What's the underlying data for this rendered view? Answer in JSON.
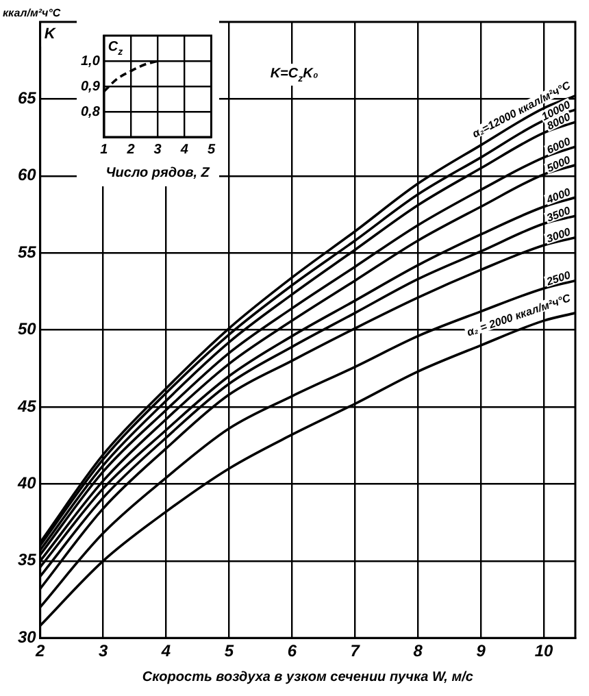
{
  "chart_data": [
    {
      "type": "line",
      "xlabel": "Скорость воздуха в узком сечении пучка W, м/с",
      "ylabel": "ккал/м²ч°С",
      "annotations": [
        "K=C$_{z}$K₀",
        "K"
      ],
      "x": [
        2,
        3,
        4,
        5,
        6,
        7,
        8,
        9,
        10,
        10.5
      ],
      "xlim": [
        2,
        10.5
      ],
      "xticks": [
        2,
        3,
        4,
        5,
        6,
        7,
        8,
        9,
        10
      ],
      "ylim": [
        30,
        70
      ],
      "yticks": [
        30,
        35,
        40,
        45,
        50,
        55,
        60,
        65
      ],
      "grid": true,
      "legend": false,
      "line_style": "solid",
      "marker": "none",
      "series": [
        {
          "name": "α₂=12000 ккал/м²ч°С",
          "color": "#000000",
          "values": [
            36.2,
            41.9,
            46.2,
            50.1,
            53.4,
            56.4,
            59.5,
            62.0,
            64.4,
            65.2
          ]
        },
        {
          "name": "10000",
          "color": "#000000",
          "values": [
            36.0,
            41.6,
            45.9,
            49.7,
            52.9,
            55.8,
            58.8,
            61.2,
            63.6,
            64.3
          ]
        },
        {
          "name": "8000",
          "color": "#000000",
          "values": [
            35.7,
            41.2,
            45.4,
            49.2,
            52.3,
            55.2,
            58.1,
            60.5,
            62.8,
            63.5
          ]
        },
        {
          "name": "6000",
          "color": "#000000",
          "values": [
            35.4,
            40.8,
            44.8,
            48.5,
            51.4,
            54.1,
            56.8,
            59.1,
            61.2,
            61.9
          ]
        },
        {
          "name": "5000",
          "color": "#000000",
          "values": [
            35.0,
            40.2,
            44.2,
            47.8,
            50.6,
            53.2,
            55.8,
            58.0,
            60.1,
            60.7
          ]
        },
        {
          "name": "4000",
          "color": "#000000",
          "values": [
            34.6,
            39.7,
            43.5,
            47.0,
            49.6,
            51.9,
            54.2,
            56.2,
            58.0,
            58.6
          ]
        },
        {
          "name": "3500",
          "color": "#000000",
          "values": [
            34.0,
            39.1,
            43.0,
            46.5,
            48.9,
            51.1,
            53.3,
            55.1,
            56.9,
            57.4
          ]
        },
        {
          "name": "3000",
          "color": "#000000",
          "values": [
            33.2,
            38.4,
            42.3,
            45.8,
            48.0,
            50.1,
            52.1,
            53.9,
            55.5,
            56.0
          ]
        },
        {
          "name": "2500",
          "color": "#000000",
          "values": [
            32.0,
            36.8,
            40.4,
            43.6,
            45.7,
            47.6,
            49.6,
            51.2,
            52.7,
            53.2
          ]
        },
        {
          "name": "α₂ = 2000 ккал/м²ч°С",
          "color": "#000000",
          "values": [
            30.8,
            35.0,
            38.2,
            41.0,
            43.2,
            45.2,
            47.3,
            49.0,
            50.6,
            51.1
          ]
        }
      ]
    },
    {
      "type": "line",
      "xlabel": "Число рядов, Z",
      "ylabel": "C$_{z}$",
      "x": [
        1,
        1.5,
        2,
        2.5,
        3
      ],
      "xlim": [
        1,
        5
      ],
      "xticks": [
        1,
        2,
        3,
        4,
        5
      ],
      "ylim": [
        0.7,
        1.1
      ],
      "yticks": [
        {
          "value": 0.8,
          "label": "0,8"
        },
        {
          "value": 0.9,
          "label": "0,9"
        },
        {
          "value": 1.0,
          "label": "1,0"
        }
      ],
      "grid": true,
      "legend": false,
      "line_style": "dashed",
      "marker": "none",
      "series": [
        {
          "color": "#000000",
          "values": [
            0.88,
            0.93,
            0.96,
            0.985,
            1.0
          ]
        }
      ]
    }
  ]
}
